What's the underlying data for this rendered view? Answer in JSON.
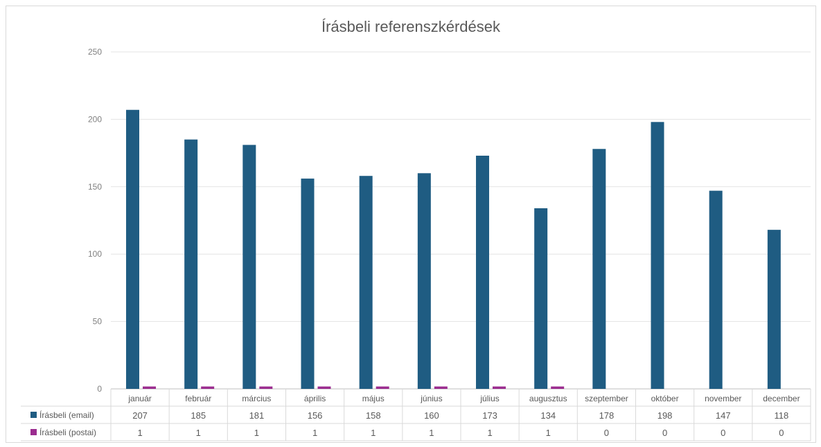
{
  "chart_data": {
    "type": "bar",
    "title": "Írásbeli referenszkérdések",
    "categories": [
      "január",
      "február",
      "március",
      "április",
      "május",
      "június",
      "július",
      "augusztus",
      "szeptember",
      "október",
      "november",
      "december"
    ],
    "series": [
      {
        "name": "Írásbeli (email)",
        "color": "#1f5c82",
        "values": [
          207,
          185,
          181,
          156,
          158,
          160,
          173,
          134,
          178,
          198,
          147,
          118
        ]
      },
      {
        "name": "Írásbeli (postai)",
        "color": "#9b2c8f",
        "values": [
          1,
          1,
          1,
          1,
          1,
          1,
          1,
          1,
          0,
          0,
          0,
          0
        ]
      }
    ],
    "ylim": [
      0,
      250
    ],
    "yticks": [
      0,
      50,
      100,
      150,
      200,
      250
    ],
    "grid": true,
    "legend": "data-table-bottom"
  }
}
